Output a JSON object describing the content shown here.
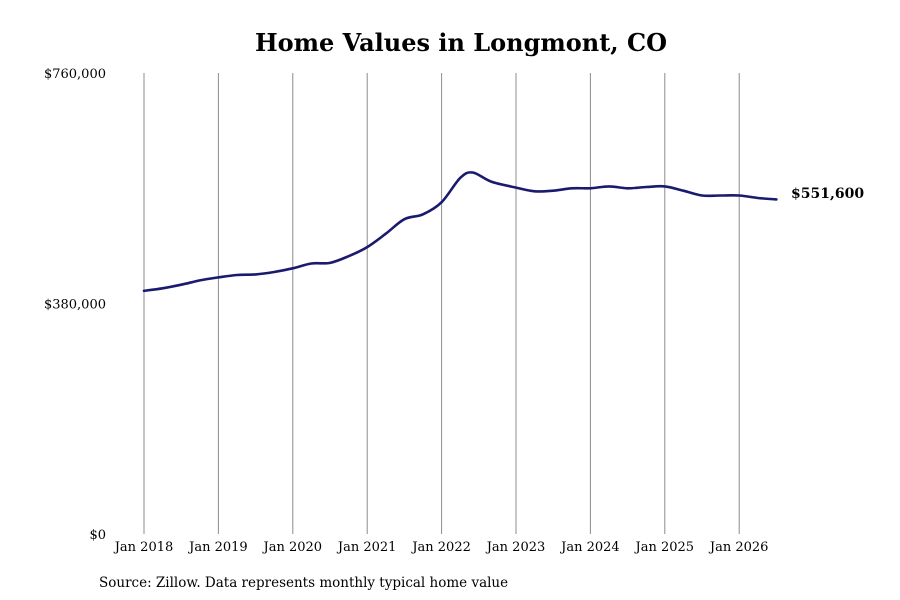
{
  "chart_data": {
    "type": "line",
    "title": "Home Values in Longmont, CO",
    "xlabel": "",
    "ylabel": "",
    "x_ticks": [
      "Jan 2018",
      "Jan 2019",
      "Jan 2020",
      "Jan 2021",
      "Jan 2022",
      "Jan 2023",
      "Jan 2024",
      "Jan 2025",
      "Jan 2026"
    ],
    "y_ticks": [
      {
        "value": 0,
        "label": "$0"
      },
      {
        "value": 380000,
        "label": "$380,000"
      },
      {
        "value": 760000,
        "label": "$760,000"
      }
    ],
    "ylim": [
      0,
      760000
    ],
    "xlim": [
      "2018-01",
      "2026-07"
    ],
    "grid": "vertical lines at each January",
    "series": [
      {
        "color": "#1a1a6e",
        "points": [
          {
            "x": "2018-01",
            "y": 401000
          },
          {
            "x": "2018-04",
            "y": 405000
          },
          {
            "x": "2018-07",
            "y": 411000
          },
          {
            "x": "2018-10",
            "y": 418000
          },
          {
            "x": "2019-01",
            "y": 423000
          },
          {
            "x": "2019-04",
            "y": 427000
          },
          {
            "x": "2019-07",
            "y": 428000
          },
          {
            "x": "2019-10",
            "y": 432000
          },
          {
            "x": "2020-01",
            "y": 438000
          },
          {
            "x": "2020-04",
            "y": 446000
          },
          {
            "x": "2020-07",
            "y": 447000
          },
          {
            "x": "2020-10",
            "y": 458000
          },
          {
            "x": "2021-01",
            "y": 473000
          },
          {
            "x": "2021-04",
            "y": 495000
          },
          {
            "x": "2021-07",
            "y": 519000
          },
          {
            "x": "2021-10",
            "y": 527000
          },
          {
            "x": "2022-01",
            "y": 547000
          },
          {
            "x": "2022-04",
            "y": 587000
          },
          {
            "x": "2022-06",
            "y": 596000
          },
          {
            "x": "2022-09",
            "y": 581000
          },
          {
            "x": "2023-01",
            "y": 571000
          },
          {
            "x": "2023-04",
            "y": 565000
          },
          {
            "x": "2023-07",
            "y": 566000
          },
          {
            "x": "2023-10",
            "y": 570000
          },
          {
            "x": "2024-01",
            "y": 570000
          },
          {
            "x": "2024-04",
            "y": 573000
          },
          {
            "x": "2024-07",
            "y": 570000
          },
          {
            "x": "2024-10",
            "y": 572000
          },
          {
            "x": "2025-01",
            "y": 573000
          },
          {
            "x": "2025-04",
            "y": 566000
          },
          {
            "x": "2025-07",
            "y": 558000
          },
          {
            "x": "2025-10",
            "y": 558000
          },
          {
            "x": "2026-01",
            "y": 558000
          },
          {
            "x": "2026-04",
            "y": 554000
          },
          {
            "x": "2026-07",
            "y": 551600
          }
        ]
      }
    ],
    "end_label": "$551,600",
    "source": "Source: Zillow. Data represents monthly typical home value"
  }
}
